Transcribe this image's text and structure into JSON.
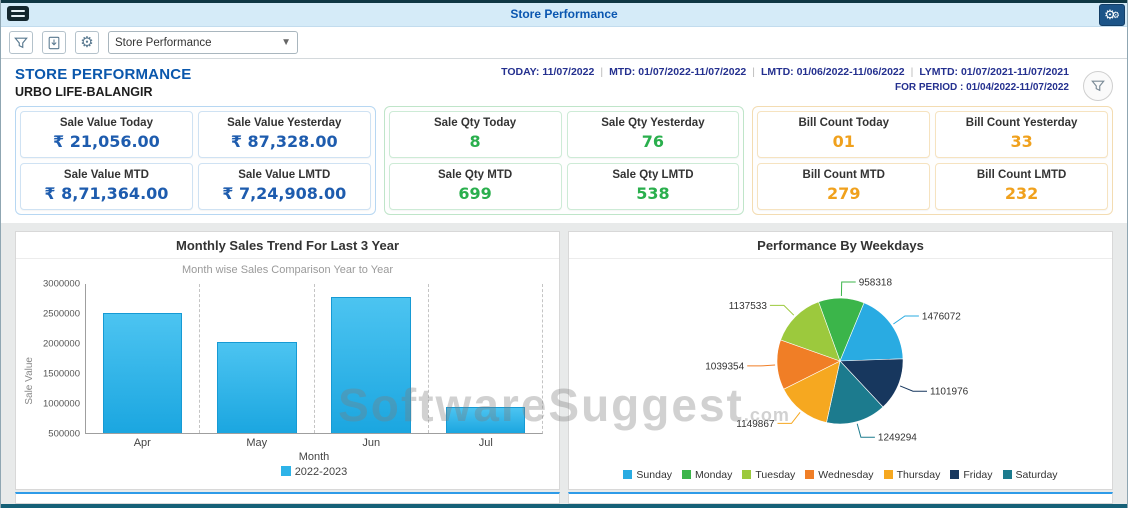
{
  "window": {
    "title": "Store Performance"
  },
  "toolbar": {
    "dropdown_value": "Store Performance"
  },
  "header": {
    "title": "STORE PERFORMANCE",
    "store_name": "URBO LIFE-BALANGIR",
    "periods": [
      {
        "label": "TODAY:",
        "value": "11/07/2022"
      },
      {
        "label": "MTD:",
        "value": "01/07/2022-11/07/2022"
      },
      {
        "label": "LMTD:",
        "value": "01/06/2022-11/06/2022"
      },
      {
        "label": "LYMTD:",
        "value": "01/07/2021-11/07/2021"
      }
    ],
    "for_period": "FOR PERIOD : 01/04/2022-11/07/2022"
  },
  "kpi_groups": [
    {
      "name": "sale-value",
      "accent": "#1e5cae",
      "group_border": "#b7d7f2",
      "card_border": "#cfe2f3",
      "cards": [
        {
          "label": "Sale Value Today",
          "value": "₹ 21,056.00"
        },
        {
          "label": "Sale Value Yesterday",
          "value": "₹ 87,328.00"
        },
        {
          "label": "Sale Value MTD",
          "value": "₹ 8,71,364.00"
        },
        {
          "label": "Sale Value LMTD",
          "value": "₹ 7,24,908.00"
        }
      ]
    },
    {
      "name": "sale-qty",
      "accent": "#2aaf4d",
      "group_border": "#bfe5c9",
      "card_border": "#cdebd6",
      "cards": [
        {
          "label": "Sale Qty Today",
          "value": "8"
        },
        {
          "label": "Sale Qty Yesterday",
          "value": "76"
        },
        {
          "label": "Sale Qty MTD",
          "value": "699"
        },
        {
          "label": "Sale Qty LMTD",
          "value": "538"
        }
      ]
    },
    {
      "name": "bill-count",
      "accent": "#f0a11d",
      "group_border": "#f3dcb2",
      "card_border": "#f6e3c0",
      "cards": [
        {
          "label": "Bill Count Today",
          "value": "01"
        },
        {
          "label": "Bill Count Yesterday",
          "value": "33"
        },
        {
          "label": "Bill Count MTD",
          "value": "279"
        },
        {
          "label": "Bill Count LMTD",
          "value": "232"
        }
      ]
    }
  ],
  "chart_data": [
    {
      "type": "bar",
      "title": "Monthly Sales Trend For Last 3 Year",
      "subtitle": "Month wise Sales Comparison Year to Year",
      "categories": [
        "Apr",
        "May",
        "Jun",
        "Jul"
      ],
      "series": [
        {
          "name": "2022-2023",
          "color": "#2eb3e8",
          "values": [
            2500000,
            2010000,
            2760000,
            930000
          ]
        }
      ],
      "xlabel": "Month",
      "ylabel": "Sale Value",
      "y_min": 500000,
      "y_max": 3000000,
      "y_ticks": [
        3000000,
        2500000,
        2000000,
        1500000,
        1000000,
        500000
      ],
      "legend_position": "bottom"
    },
    {
      "type": "pie",
      "title": "Performance By Weekdays",
      "start_angle_deg": -20,
      "slices": [
        {
          "label": "Monday",
          "value": 958318,
          "color": "#3bb54a"
        },
        {
          "label": "Sunday",
          "value": 1476072,
          "color": "#29abe2"
        },
        {
          "label": "Friday",
          "value": 1101976,
          "color": "#17375e"
        },
        {
          "label": "Saturday",
          "value": 1249294,
          "color": "#1c7b8e"
        },
        {
          "label": "Thursday",
          "value": 1149867,
          "color": "#f6a820"
        },
        {
          "label": "Wednesday",
          "value": 1039354,
          "color": "#f07e26"
        },
        {
          "label": "Tuesday",
          "value": 1137533,
          "color": "#9cc93d"
        }
      ],
      "legend_order": [
        "Sunday",
        "Monday",
        "Tuesday",
        "Wednesday",
        "Thursday",
        "Friday",
        "Saturday"
      ],
      "legend_position": "bottom"
    }
  ],
  "watermark": {
    "text": "SoftwareSuggest",
    "suffix": ".com"
  }
}
